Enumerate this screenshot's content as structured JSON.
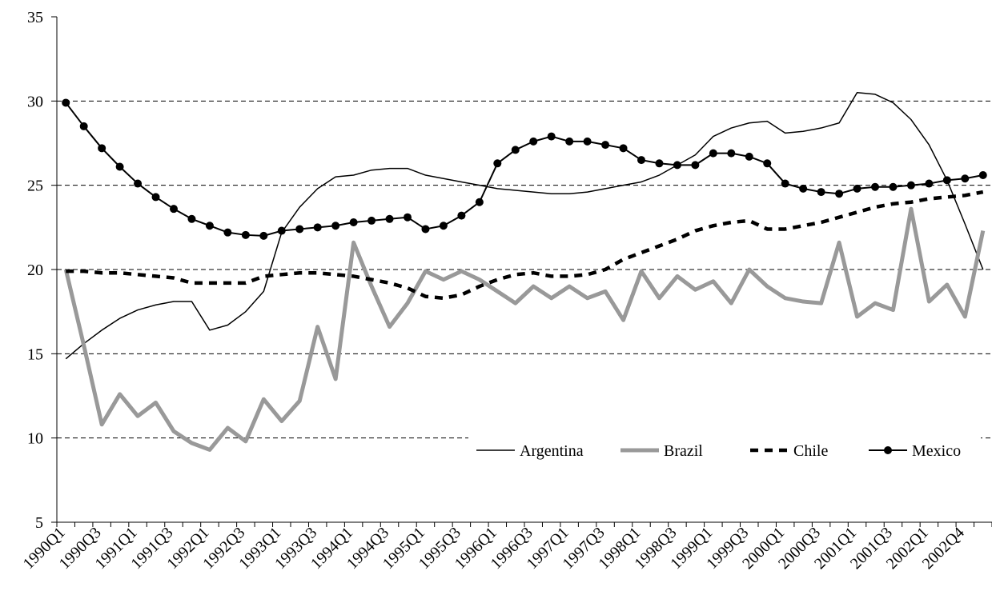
{
  "chart_data": {
    "type": "line",
    "categories": [
      "1990Q1",
      null,
      "1990Q3",
      null,
      "1991Q1",
      null,
      "1991Q3",
      null,
      "1992Q1",
      null,
      "1992Q3",
      null,
      "1993Q1",
      null,
      "1993Q3",
      null,
      "1994Q1",
      null,
      "1994Q3",
      null,
      "1995Q1",
      null,
      "1995Q3",
      null,
      "1996Q1",
      null,
      "1996Q3",
      null,
      "1997Q1",
      null,
      "1997Q3",
      null,
      "1998Q1",
      null,
      "1998Q3",
      null,
      "1999Q1",
      null,
      "1999Q3",
      null,
      "2000Q1",
      null,
      "2000Q3",
      null,
      "2001Q1",
      null,
      "2001Q3",
      null,
      "2002Q1",
      null,
      "2002Q4",
      null
    ],
    "series": [
      {
        "name": "Argentina",
        "color": "#000000",
        "values": [
          14.7,
          15.6,
          16.4,
          17.1,
          17.6,
          17.9,
          18.1,
          18.1,
          16.4,
          16.7,
          17.5,
          18.7,
          22.2,
          23.7,
          24.8,
          25.5,
          25.6,
          25.9,
          26.0,
          26.0,
          25.6,
          25.4,
          25.2,
          25.0,
          24.8,
          24.7,
          24.6,
          24.5,
          24.5,
          24.6,
          24.8,
          25.0,
          25.2,
          25.6,
          26.2,
          26.8,
          27.9,
          28.4,
          28.7,
          28.8,
          28.1,
          28.2,
          28.4,
          28.7,
          30.5,
          30.4,
          29.9,
          28.9,
          27.4,
          25.3,
          22.7,
          20.0
        ]
      },
      {
        "name": "Brazil",
        "color": "#999999",
        "values": [
          20.0,
          15.5,
          10.8,
          12.6,
          11.3,
          12.1,
          10.4,
          9.7,
          9.3,
          10.6,
          9.8,
          12.3,
          11.0,
          12.2,
          16.6,
          13.5,
          21.6,
          19.0,
          16.6,
          18.0,
          19.9,
          19.4,
          19.9,
          19.4,
          18.7,
          18.0,
          19.0,
          18.3,
          19.0,
          18.3,
          18.7,
          17.0,
          19.9,
          18.3,
          19.6,
          18.8,
          19.3,
          18.0,
          20.0,
          19.0,
          18.3,
          18.1,
          18.0,
          21.6,
          17.2,
          18.0,
          17.6,
          23.6,
          18.1,
          19.1,
          17.2,
          22.3
        ]
      },
      {
        "name": "Chile",
        "color": "#000000",
        "values": [
          19.9,
          19.9,
          19.8,
          19.8,
          19.7,
          19.6,
          19.5,
          19.2,
          19.2,
          19.2,
          19.2,
          19.6,
          19.7,
          19.8,
          19.8,
          19.7,
          19.6,
          19.4,
          19.2,
          18.9,
          18.4,
          18.3,
          18.5,
          19.0,
          19.4,
          19.7,
          19.8,
          19.6,
          19.6,
          19.7,
          20.0,
          20.6,
          21.0,
          21.4,
          21.8,
          22.3,
          22.6,
          22.8,
          22.9,
          22.4,
          22.4,
          22.6,
          22.8,
          23.1,
          23.4,
          23.7,
          23.9,
          24.0,
          24.2,
          24.3,
          24.4,
          24.6
        ]
      },
      {
        "name": "Mexico",
        "color": "#000000",
        "values": [
          29.9,
          28.5,
          27.2,
          26.1,
          25.1,
          24.3,
          23.6,
          23.0,
          22.6,
          22.2,
          22.05,
          22.0,
          22.3,
          22.4,
          22.5,
          22.6,
          22.8,
          22.9,
          23.0,
          23.1,
          22.4,
          22.6,
          23.2,
          24.0,
          26.3,
          27.1,
          27.6,
          27.9,
          27.6,
          27.6,
          27.4,
          27.2,
          26.5,
          26.3,
          26.2,
          26.2,
          26.9,
          26.9,
          26.7,
          26.3,
          25.1,
          24.8,
          24.6,
          24.5,
          24.8,
          24.9,
          24.9,
          25.0,
          25.1,
          25.3,
          25.4,
          25.6
        ]
      }
    ],
    "ylim": [
      5,
      35
    ],
    "yticks": [
      5,
      10,
      15,
      20,
      25,
      30,
      35
    ],
    "grid": true
  }
}
